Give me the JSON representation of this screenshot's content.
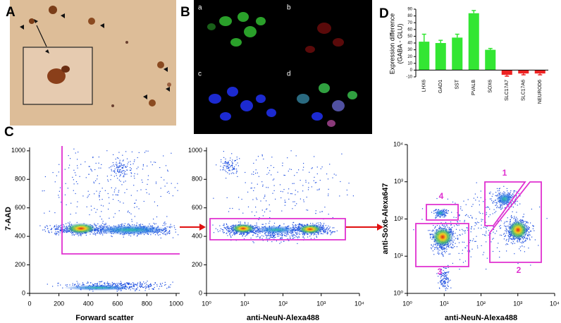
{
  "panel_labels": [
    "A",
    "B",
    "C",
    "D"
  ],
  "panel_b": {
    "labels": [
      "a",
      "b",
      "c",
      "d"
    ]
  },
  "panel_c": {
    "plots": [
      {
        "type": "scatter",
        "xlabel": "Forward scatter",
        "ylabel": "7-AAD",
        "xscale": "linear",
        "yscale": "linear",
        "xlim": [
          0,
          1024
        ],
        "ylim": [
          0,
          1024
        ],
        "xticks": [
          0,
          200,
          400,
          600,
          800,
          1000
        ],
        "yticks": [
          0,
          200,
          400,
          600,
          800,
          1000
        ]
      },
      {
        "type": "scatter",
        "xlabel": "anti-NeuN-Alexa488",
        "xscale": "log",
        "yscale": "linear",
        "xlim": [
          1,
          10000
        ],
        "ylim": [
          0,
          1024
        ],
        "xticks": [
          {
            "value": 1,
            "label": "10⁰"
          },
          {
            "value": 10,
            "label": "10¹"
          },
          {
            "value": 100,
            "label": "10²"
          },
          {
            "value": 1000,
            "label": "10³"
          },
          {
            "value": 10000,
            "label": "10⁴"
          }
        ],
        "yticks": [
          0,
          200,
          400,
          600,
          800,
          1000
        ]
      },
      {
        "type": "scatter",
        "xlabel": "anti-NeuN-Alexa488",
        "ylabel": "anti-Sox6-Alexa647",
        "xscale": "log",
        "yscale": "log",
        "xlim": [
          1,
          10000
        ],
        "ylim": [
          1,
          10000
        ],
        "xticks": [
          {
            "value": 1,
            "label": "10⁰"
          },
          {
            "value": 10,
            "label": "10¹"
          },
          {
            "value": 100,
            "label": "10²"
          },
          {
            "value": 1000,
            "label": "10³"
          },
          {
            "value": 10000,
            "label": "10⁴"
          }
        ],
        "yticks": [
          {
            "value": 1,
            "label": "10⁰"
          },
          {
            "value": 10,
            "label": "10¹"
          },
          {
            "value": 100,
            "label": "10²"
          },
          {
            "value": 1000,
            "label": "10³"
          },
          {
            "value": 10000,
            "label": "10⁴"
          }
        ],
        "gate_labels": [
          "1",
          "2",
          "3",
          "4"
        ]
      }
    ]
  },
  "panel_d": {
    "type": "bar",
    "ylabel": [
      "Expression difference",
      "(GABA - GLU)"
    ],
    "categories": [
      "LHX6",
      "GAD1",
      "SST",
      "PVALB",
      "SOX6",
      "SLC17A7",
      "SLC17A6",
      "NEUROD6"
    ],
    "values": [
      42,
      40,
      48,
      84,
      30,
      -7,
      -5,
      -5
    ],
    "errors": [
      11,
      4,
      5,
      4,
      2,
      2,
      2,
      2
    ],
    "colors": [
      "#33e633",
      "#33e633",
      "#33e633",
      "#33e633",
      "#33e633",
      "#ee2222",
      "#ee2222",
      "#ee2222"
    ],
    "ylim": [
      -10,
      90
    ],
    "yticks": [
      -10,
      0,
      10,
      20,
      30,
      40,
      50,
      60,
      70,
      80,
      90
    ]
  }
}
